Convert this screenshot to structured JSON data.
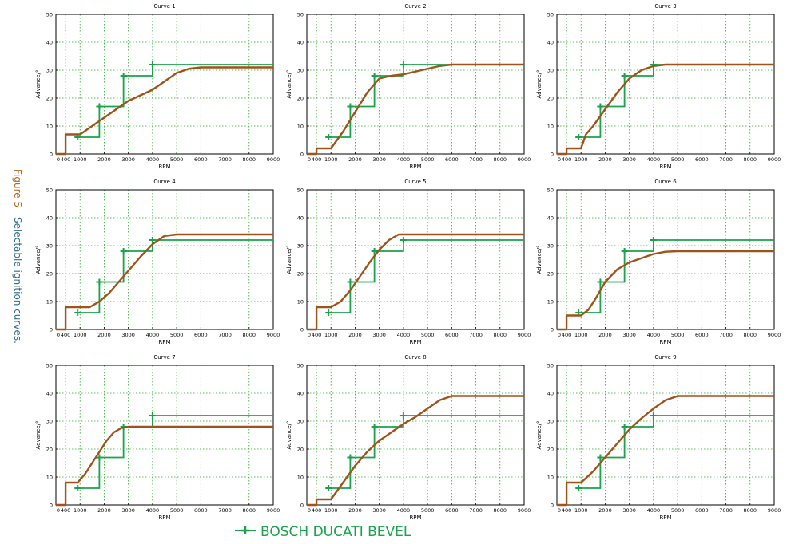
{
  "figure": {
    "label": "Figure 5",
    "caption": "Selectable ignition curves.",
    "label_color": "#b5651d",
    "caption_color": "#2e6c8c"
  },
  "legend": {
    "label": "BOSCH DUCATI BEVEL",
    "color": "#1aa34a"
  },
  "colors": {
    "bosch": "#1aa34a",
    "curve": "#a0521b",
    "grid": "#22aa22"
  },
  "axes": {
    "xlabel": "RPM",
    "ylabel": "Advance/°",
    "xlim": [
      0,
      9000
    ],
    "ylim": [
      0,
      50
    ],
    "xticks": [
      0,
      400,
      1000,
      2000,
      3000,
      4000,
      5000,
      6000,
      7000,
      8000,
      9000
    ],
    "xtick_labels": [
      "0",
      "400",
      "1000",
      "2000",
      "3000",
      "4000",
      "5000",
      "6000",
      "7000",
      "8000",
      "9000"
    ],
    "yticks": [
      0,
      10,
      20,
      30,
      40,
      50
    ],
    "ytick_labels": [
      "0",
      "10",
      "20",
      "30",
      "40",
      "50"
    ]
  },
  "chart_data": [
    {
      "type": "line",
      "title": "Curve 1",
      "series": [
        {
          "name": "BOSCH DUCATI BEVEL",
          "step": true,
          "markers": true,
          "x": [
            900,
            1800,
            2800,
            4000,
            9000
          ],
          "y": [
            6,
            17,
            28,
            32,
            32
          ]
        },
        {
          "name": "Curve",
          "x": [
            0,
            400,
            400,
            1000,
            1500,
            2000,
            2500,
            3000,
            3500,
            4000,
            4500,
            5000,
            5500,
            6000,
            6500,
            9000
          ],
          "y": [
            0,
            0,
            7,
            7,
            10,
            13,
            16,
            19,
            21,
            23,
            26,
            29,
            30.5,
            31,
            31,
            31
          ]
        }
      ]
    },
    {
      "type": "line",
      "title": "Curve 2",
      "series": [
        {
          "name": "BOSCH DUCATI BEVEL",
          "step": true,
          "markers": true,
          "x": [
            900,
            1800,
            2800,
            4000,
            9000
          ],
          "y": [
            6,
            17,
            28,
            32,
            32
          ]
        },
        {
          "name": "Curve",
          "x": [
            0,
            400,
            400,
            1000,
            1500,
            2000,
            2500,
            3000,
            3500,
            4000,
            4500,
            5000,
            5500,
            6000,
            9000
          ],
          "y": [
            0,
            0,
            2,
            2,
            8,
            15,
            22,
            27,
            28,
            28.5,
            29.5,
            30.5,
            31.5,
            32,
            32
          ]
        }
      ]
    },
    {
      "type": "line",
      "title": "Curve 3",
      "series": [
        {
          "name": "BOSCH DUCATI BEVEL",
          "step": true,
          "markers": true,
          "x": [
            900,
            1800,
            2800,
            4000,
            9000
          ],
          "y": [
            6,
            17,
            28,
            32,
            32
          ]
        },
        {
          "name": "Curve",
          "x": [
            0,
            400,
            400,
            1000,
            1200,
            1500,
            2000,
            2500,
            3000,
            3500,
            4000,
            4500,
            5000,
            9000
          ],
          "y": [
            0,
            0,
            2,
            2,
            7,
            10,
            16,
            22,
            27,
            30,
            31.5,
            32,
            32,
            32
          ]
        }
      ]
    },
    {
      "type": "line",
      "title": "Curve 4",
      "series": [
        {
          "name": "BOSCH DUCATI BEVEL",
          "step": true,
          "markers": true,
          "x": [
            900,
            1800,
            2800,
            4000,
            9000
          ],
          "y": [
            6,
            17,
            28,
            32,
            32
          ]
        },
        {
          "name": "Curve",
          "x": [
            0,
            400,
            400,
            1400,
            1800,
            2200,
            2600,
            3000,
            3500,
            4000,
            4500,
            5000,
            9000
          ],
          "y": [
            0,
            0,
            8,
            8,
            10,
            13,
            17,
            21,
            26,
            30.5,
            33.5,
            34,
            34
          ]
        }
      ]
    },
    {
      "type": "line",
      "title": "Curve 5",
      "series": [
        {
          "name": "BOSCH DUCATI BEVEL",
          "step": true,
          "markers": true,
          "x": [
            900,
            1800,
            2800,
            4000,
            9000
          ],
          "y": [
            6,
            17,
            28,
            32,
            32
          ]
        },
        {
          "name": "Curve",
          "x": [
            0,
            400,
            400,
            1000,
            1400,
            1800,
            2200,
            2600,
            3000,
            3400,
            3800,
            4200,
            9000
          ],
          "y": [
            0,
            0,
            8,
            8,
            10,
            14,
            19,
            24,
            28.5,
            32,
            34,
            34,
            34
          ]
        }
      ]
    },
    {
      "type": "line",
      "title": "Curve 6",
      "series": [
        {
          "name": "BOSCH DUCATI BEVEL",
          "step": true,
          "markers": true,
          "x": [
            900,
            1800,
            2800,
            4000,
            9000
          ],
          "y": [
            6,
            17,
            28,
            32,
            32
          ]
        },
        {
          "name": "Curve",
          "x": [
            0,
            400,
            400,
            1000,
            1300,
            1600,
            2000,
            2500,
            3000,
            3500,
            4000,
            4500,
            5000,
            9000
          ],
          "y": [
            0,
            0,
            5,
            5,
            7,
            11,
            17,
            21.5,
            24,
            25.5,
            27,
            27.8,
            28,
            28
          ]
        }
      ]
    },
    {
      "type": "line",
      "title": "Curve 7",
      "series": [
        {
          "name": "BOSCH DUCATI BEVEL",
          "step": true,
          "markers": true,
          "x": [
            900,
            1800,
            2800,
            4000,
            9000
          ],
          "y": [
            6,
            17,
            28,
            32,
            32
          ]
        },
        {
          "name": "Curve",
          "x": [
            0,
            400,
            400,
            900,
            1200,
            1500,
            1800,
            2100,
            2400,
            2700,
            3000,
            9000
          ],
          "y": [
            0,
            0,
            8,
            8,
            11,
            15,
            19,
            23,
            26,
            27.5,
            28,
            28
          ]
        }
      ]
    },
    {
      "type": "line",
      "title": "Curve 8",
      "series": [
        {
          "name": "BOSCH DUCATI BEVEL",
          "step": true,
          "markers": true,
          "x": [
            900,
            1800,
            2800,
            4000,
            9000
          ],
          "y": [
            6,
            17,
            28,
            32,
            32
          ]
        },
        {
          "name": "Curve",
          "x": [
            0,
            400,
            400,
            1000,
            1500,
            2000,
            2500,
            3000,
            3500,
            4000,
            4500,
            5000,
            5500,
            6000,
            9000
          ],
          "y": [
            0,
            0,
            2,
            2,
            8,
            14,
            19,
            23,
            26,
            29,
            31.5,
            34.5,
            37.5,
            39,
            39
          ]
        }
      ]
    },
    {
      "type": "line",
      "title": "Curve 9",
      "series": [
        {
          "name": "BOSCH DUCATI BEVEL",
          "step": true,
          "markers": true,
          "x": [
            900,
            1800,
            2800,
            4000,
            9000
          ],
          "y": [
            6,
            17,
            28,
            32,
            32
          ]
        },
        {
          "name": "Curve",
          "x": [
            0,
            400,
            400,
            1000,
            1500,
            2000,
            2500,
            3000,
            3500,
            4000,
            4500,
            5000,
            9000
          ],
          "y": [
            0,
            0,
            8,
            8,
            12,
            17,
            22,
            27,
            31,
            34.5,
            37.5,
            39,
            39
          ]
        }
      ]
    }
  ]
}
